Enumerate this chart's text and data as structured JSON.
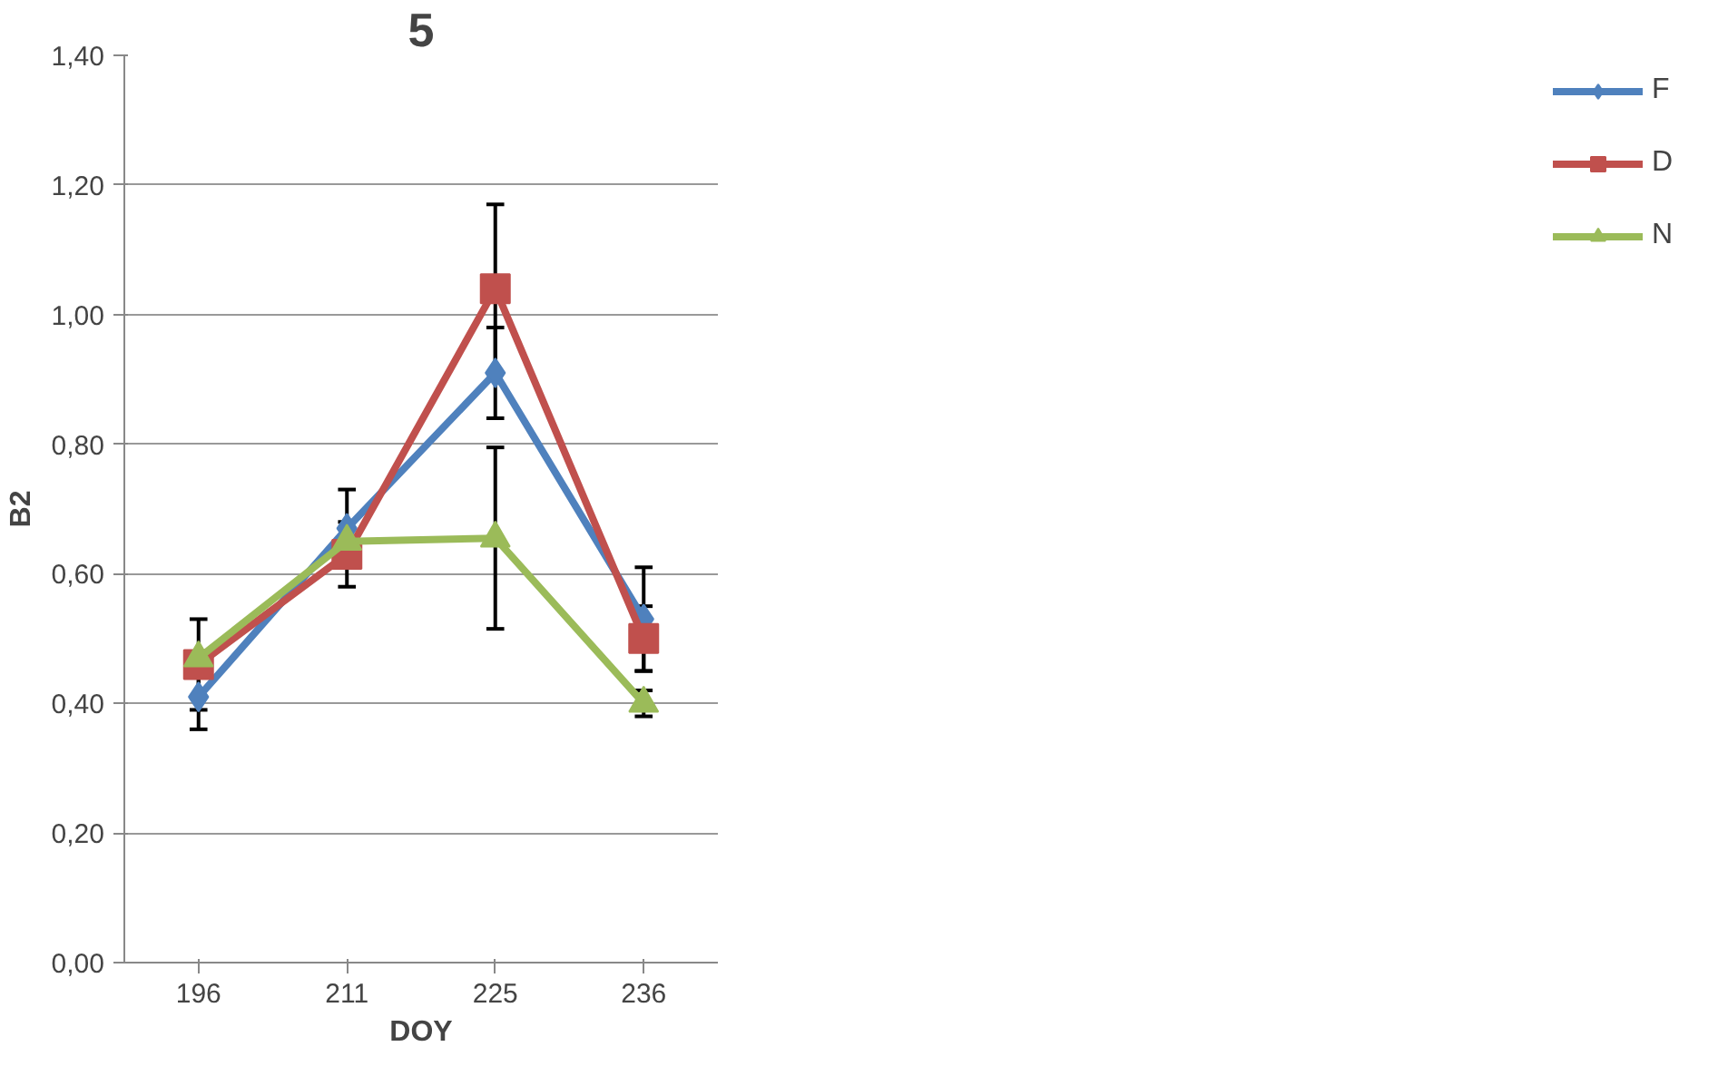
{
  "chart_data": {
    "type": "line",
    "title": "5",
    "xlabel": "DOY",
    "ylabel": "B2",
    "categories": [
      "196",
      "211",
      "225",
      "236"
    ],
    "series": [
      {
        "name": "F",
        "color": "#4f81bd",
        "marker": "diamond",
        "values": [
          0.41,
          0.67,
          0.91,
          0.53
        ],
        "errors": [
          0.05,
          0.06,
          0.07,
          0.08
        ]
      },
      {
        "name": "D",
        "color": "#c0504d",
        "marker": "square",
        "values": [
          0.46,
          0.63,
          1.04,
          0.5
        ],
        "errors": [
          0.07,
          0.05,
          0.13,
          0.05
        ]
      },
      {
        "name": "N",
        "color": "#9bbb59",
        "marker": "triangle",
        "values": [
          0.47,
          0.65,
          0.655,
          0.4
        ],
        "errors": [
          null,
          null,
          0.14,
          0.02
        ]
      }
    ],
    "ylim": [
      0,
      1.4
    ],
    "yticks": [
      {
        "value": 0,
        "label": "0,00"
      },
      {
        "value": 0.2,
        "label": "0,20"
      },
      {
        "value": 0.4,
        "label": "0,40"
      },
      {
        "value": 0.6,
        "label": "0,60"
      },
      {
        "value": 0.8,
        "label": "0,80"
      },
      {
        "value": 1.0,
        "label": "1,00"
      },
      {
        "value": 1.2,
        "label": "1,20"
      },
      {
        "value": 1.4,
        "label": "1,40"
      }
    ],
    "grid": "y",
    "legend": "right"
  }
}
